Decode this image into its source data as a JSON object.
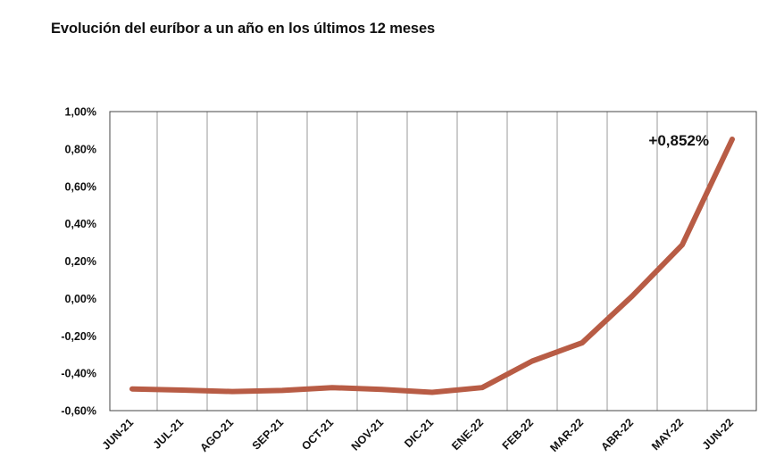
{
  "title": "Evolución del euríbor a un año en los últimos 12 meses",
  "chart_data": {
    "type": "line",
    "title": "Evolución del euríbor a un año en los últimos 12 meses",
    "xlabel": "",
    "ylabel": "",
    "categories": [
      "JUN-21",
      "JUL-21",
      "AGO-21",
      "SEP-21",
      "OCT-21",
      "NOV-21",
      "DIC-21",
      "ENE-22",
      "FEB-22",
      "MAR-22",
      "ABR-22",
      "MAY-22",
      "JUN-22"
    ],
    "series": [
      {
        "name": "",
        "color": "#b85c45",
        "values": [
          -0.484,
          -0.49,
          -0.498,
          -0.492,
          -0.477,
          -0.487,
          -0.502,
          -0.477,
          -0.335,
          -0.237,
          0.013,
          0.287,
          0.852
        ]
      }
    ],
    "ylim": [
      -0.6,
      1.0
    ],
    "yticks": [
      1.0,
      0.8,
      0.6,
      0.4,
      0.2,
      0.0,
      -0.2,
      -0.4,
      -0.6
    ],
    "ytick_labels": [
      "1,00%",
      "0,80%",
      "0,60%",
      "0,40%",
      "0,20%",
      "0,00%",
      "-0,20%",
      "-0,40%",
      "-0,60%"
    ],
    "grid": {
      "vertical": true,
      "horizontal": false
    },
    "annotation": {
      "text": "+0,852%",
      "category": "JUN-22"
    }
  }
}
